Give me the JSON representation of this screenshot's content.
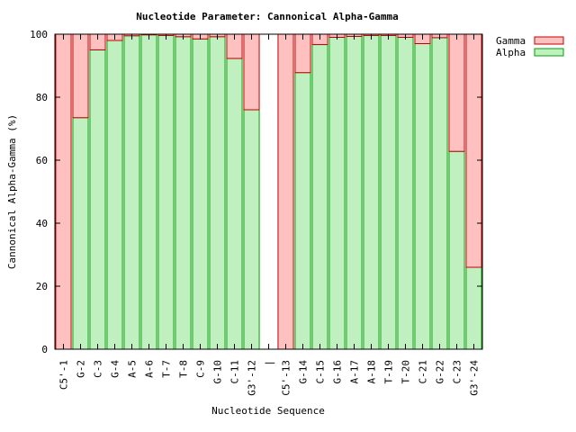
{
  "chart_data": {
    "type": "bar",
    "stacked": true,
    "title": "Nucleotide Parameter: Cannonical Alpha-Gamma",
    "xlabel": "Nucleotide Sequence",
    "ylabel": "Cannonical Alpha-Gamma (%)",
    "ylim": [
      0,
      100
    ],
    "yticks": [
      0,
      20,
      40,
      60,
      80,
      100
    ],
    "grid": false,
    "legend_position": "top-right, outside plot",
    "categories": [
      "C5'-1",
      "G-2",
      "C-3",
      "G-4",
      "A-5",
      "A-6",
      "T-7",
      "T-8",
      "C-9",
      "G-10",
      "C-11",
      "G3'-12",
      "|",
      "C5'-13",
      "G-14",
      "C-15",
      "G-16",
      "A-17",
      "A-18",
      "T-19",
      "T-20",
      "C-21",
      "G-22",
      "C-23",
      "G3'-24"
    ],
    "series": [
      {
        "name": "Alpha",
        "color": "#c0f0c0",
        "stroke": "#00a000",
        "values": [
          0,
          73.5,
          95,
          98,
          99.5,
          99.8,
          99.6,
          99.2,
          98.5,
          99.2,
          92.3,
          76,
          null,
          0,
          87.8,
          96.7,
          99,
          99.3,
          99.6,
          99.6,
          99,
          97,
          98.9,
          62.8,
          26
        ]
      },
      {
        "name": "Gamma",
        "color": "#ffc0c0",
        "stroke": "#c00000",
        "values": [
          100,
          26.5,
          5,
          2,
          0.5,
          0.2,
          0.4,
          0.8,
          1.5,
          0.8,
          7.7,
          24,
          null,
          100,
          12.2,
          3.3,
          1,
          0.7,
          0.4,
          0.4,
          1,
          3,
          1.1,
          37.2,
          74
        ]
      }
    ]
  }
}
